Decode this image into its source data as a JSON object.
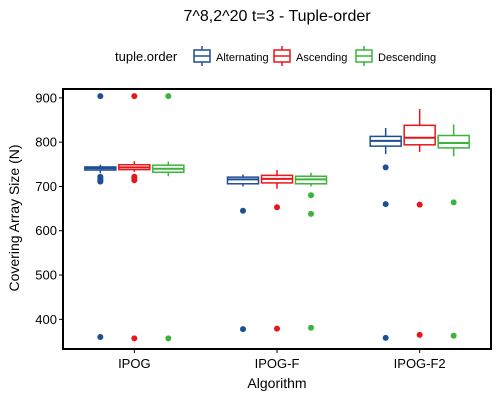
{
  "chart_data": {
    "type": "box",
    "title": "7^8,2^20 t=3 - Tuple-order",
    "xlabel": "Algorithm",
    "ylabel": "Covering Array Size (N)",
    "categories": [
      "IPOG",
      "IPOG-F",
      "IPOG-F2"
    ],
    "ylim": [
      333,
      920
    ],
    "yticks": [
      400,
      500,
      600,
      700,
      800,
      900
    ],
    "grid": false,
    "legend": {
      "title": "tuple.order",
      "placement": "top"
    },
    "series": [
      {
        "name": "Alternating",
        "color": "#1f4e96",
        "boxes": [
          {
            "min": 730,
            "q1": 737,
            "median": 741,
            "q3": 744,
            "max": 749,
            "outliers": [
              904,
              722,
              719,
              716,
              713,
              711,
              360
            ]
          },
          {
            "min": 700,
            "q1": 706,
            "median": 716,
            "q3": 721,
            "max": 727,
            "outliers": [
              645,
              378
            ]
          },
          {
            "min": 773,
            "q1": 791,
            "median": 803,
            "q3": 813,
            "max": 832,
            "outliers": [
              743,
              660,
              358
            ]
          }
        ]
      },
      {
        "name": "Ascending",
        "color": "#e8151b",
        "boxes": [
          {
            "min": 733,
            "q1": 738,
            "median": 743,
            "q3": 749,
            "max": 757,
            "outliers": [
              904,
              722,
              718,
              714,
              357
            ]
          },
          {
            "min": 695,
            "q1": 708,
            "median": 717,
            "q3": 725,
            "max": 737,
            "outliers": [
              653,
              379
            ]
          },
          {
            "min": 778,
            "q1": 794,
            "median": 810,
            "q3": 838,
            "max": 875,
            "outliers": [
              659,
              365
            ]
          }
        ]
      },
      {
        "name": "Descending",
        "color": "#3bb43b",
        "boxes": [
          {
            "min": 723,
            "q1": 732,
            "median": 740,
            "q3": 748,
            "max": 756,
            "outliers": [
              904,
              357
            ]
          },
          {
            "min": 700,
            "q1": 706,
            "median": 716,
            "q3": 723,
            "max": 731,
            "outliers": [
              680,
              638,
              381
            ]
          },
          {
            "min": 768,
            "q1": 787,
            "median": 798,
            "q3": 815,
            "max": 840,
            "outliers": [
              664,
              363
            ]
          }
        ]
      }
    ]
  }
}
